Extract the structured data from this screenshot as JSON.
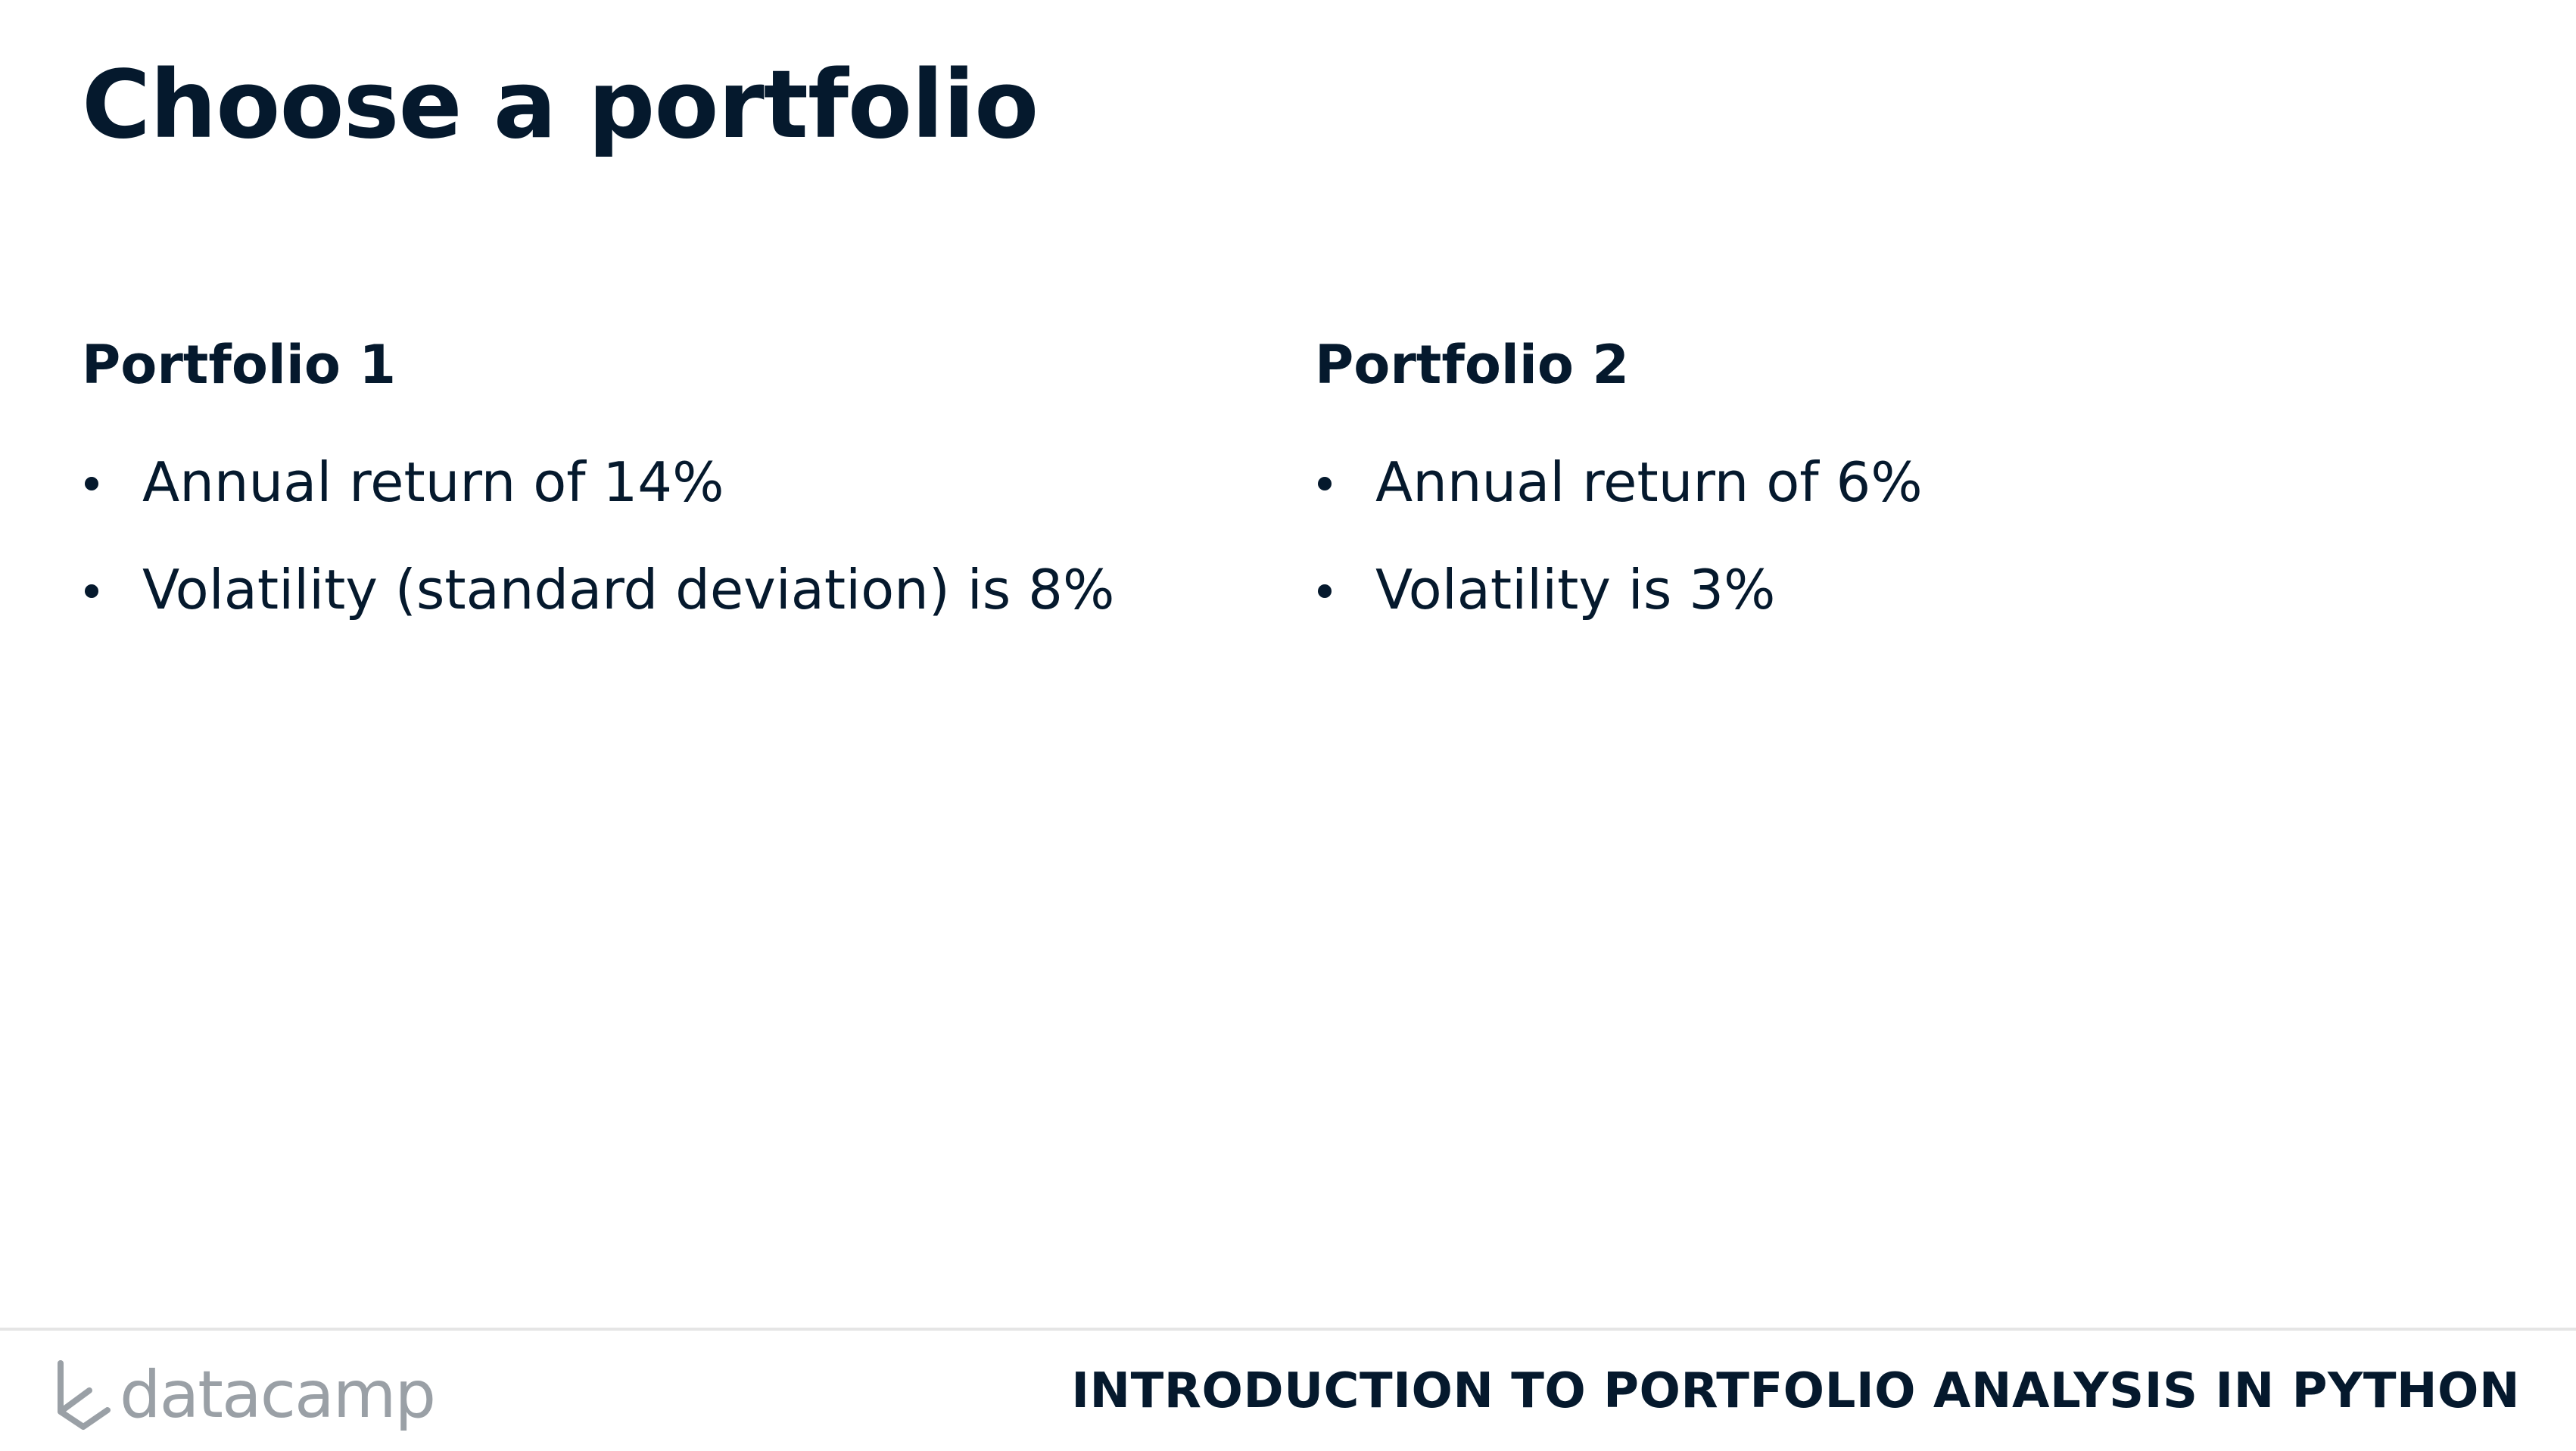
{
  "slide": {
    "title": "Choose a portfolio"
  },
  "portfolios": [
    {
      "heading": "Portfolio 1",
      "bullets": [
        "Annual return of 14%",
        "Volatility (standard deviation) is 8%"
      ]
    },
    {
      "heading": "Portfolio 2",
      "bullets": [
        "Annual return of 6%",
        "Volatility is 3%"
      ]
    }
  ],
  "footer": {
    "logo_text": "datacamp",
    "logo_icon": "datacamp-logo-icon",
    "course_name": "INTRODUCTION TO PORTFOLIO ANALYSIS IN PYTHON"
  },
  "colors": {
    "text": "#05192d",
    "logo_gray": "#9aa0a6",
    "divider": "#e5e5e5",
    "background": "#ffffff"
  }
}
